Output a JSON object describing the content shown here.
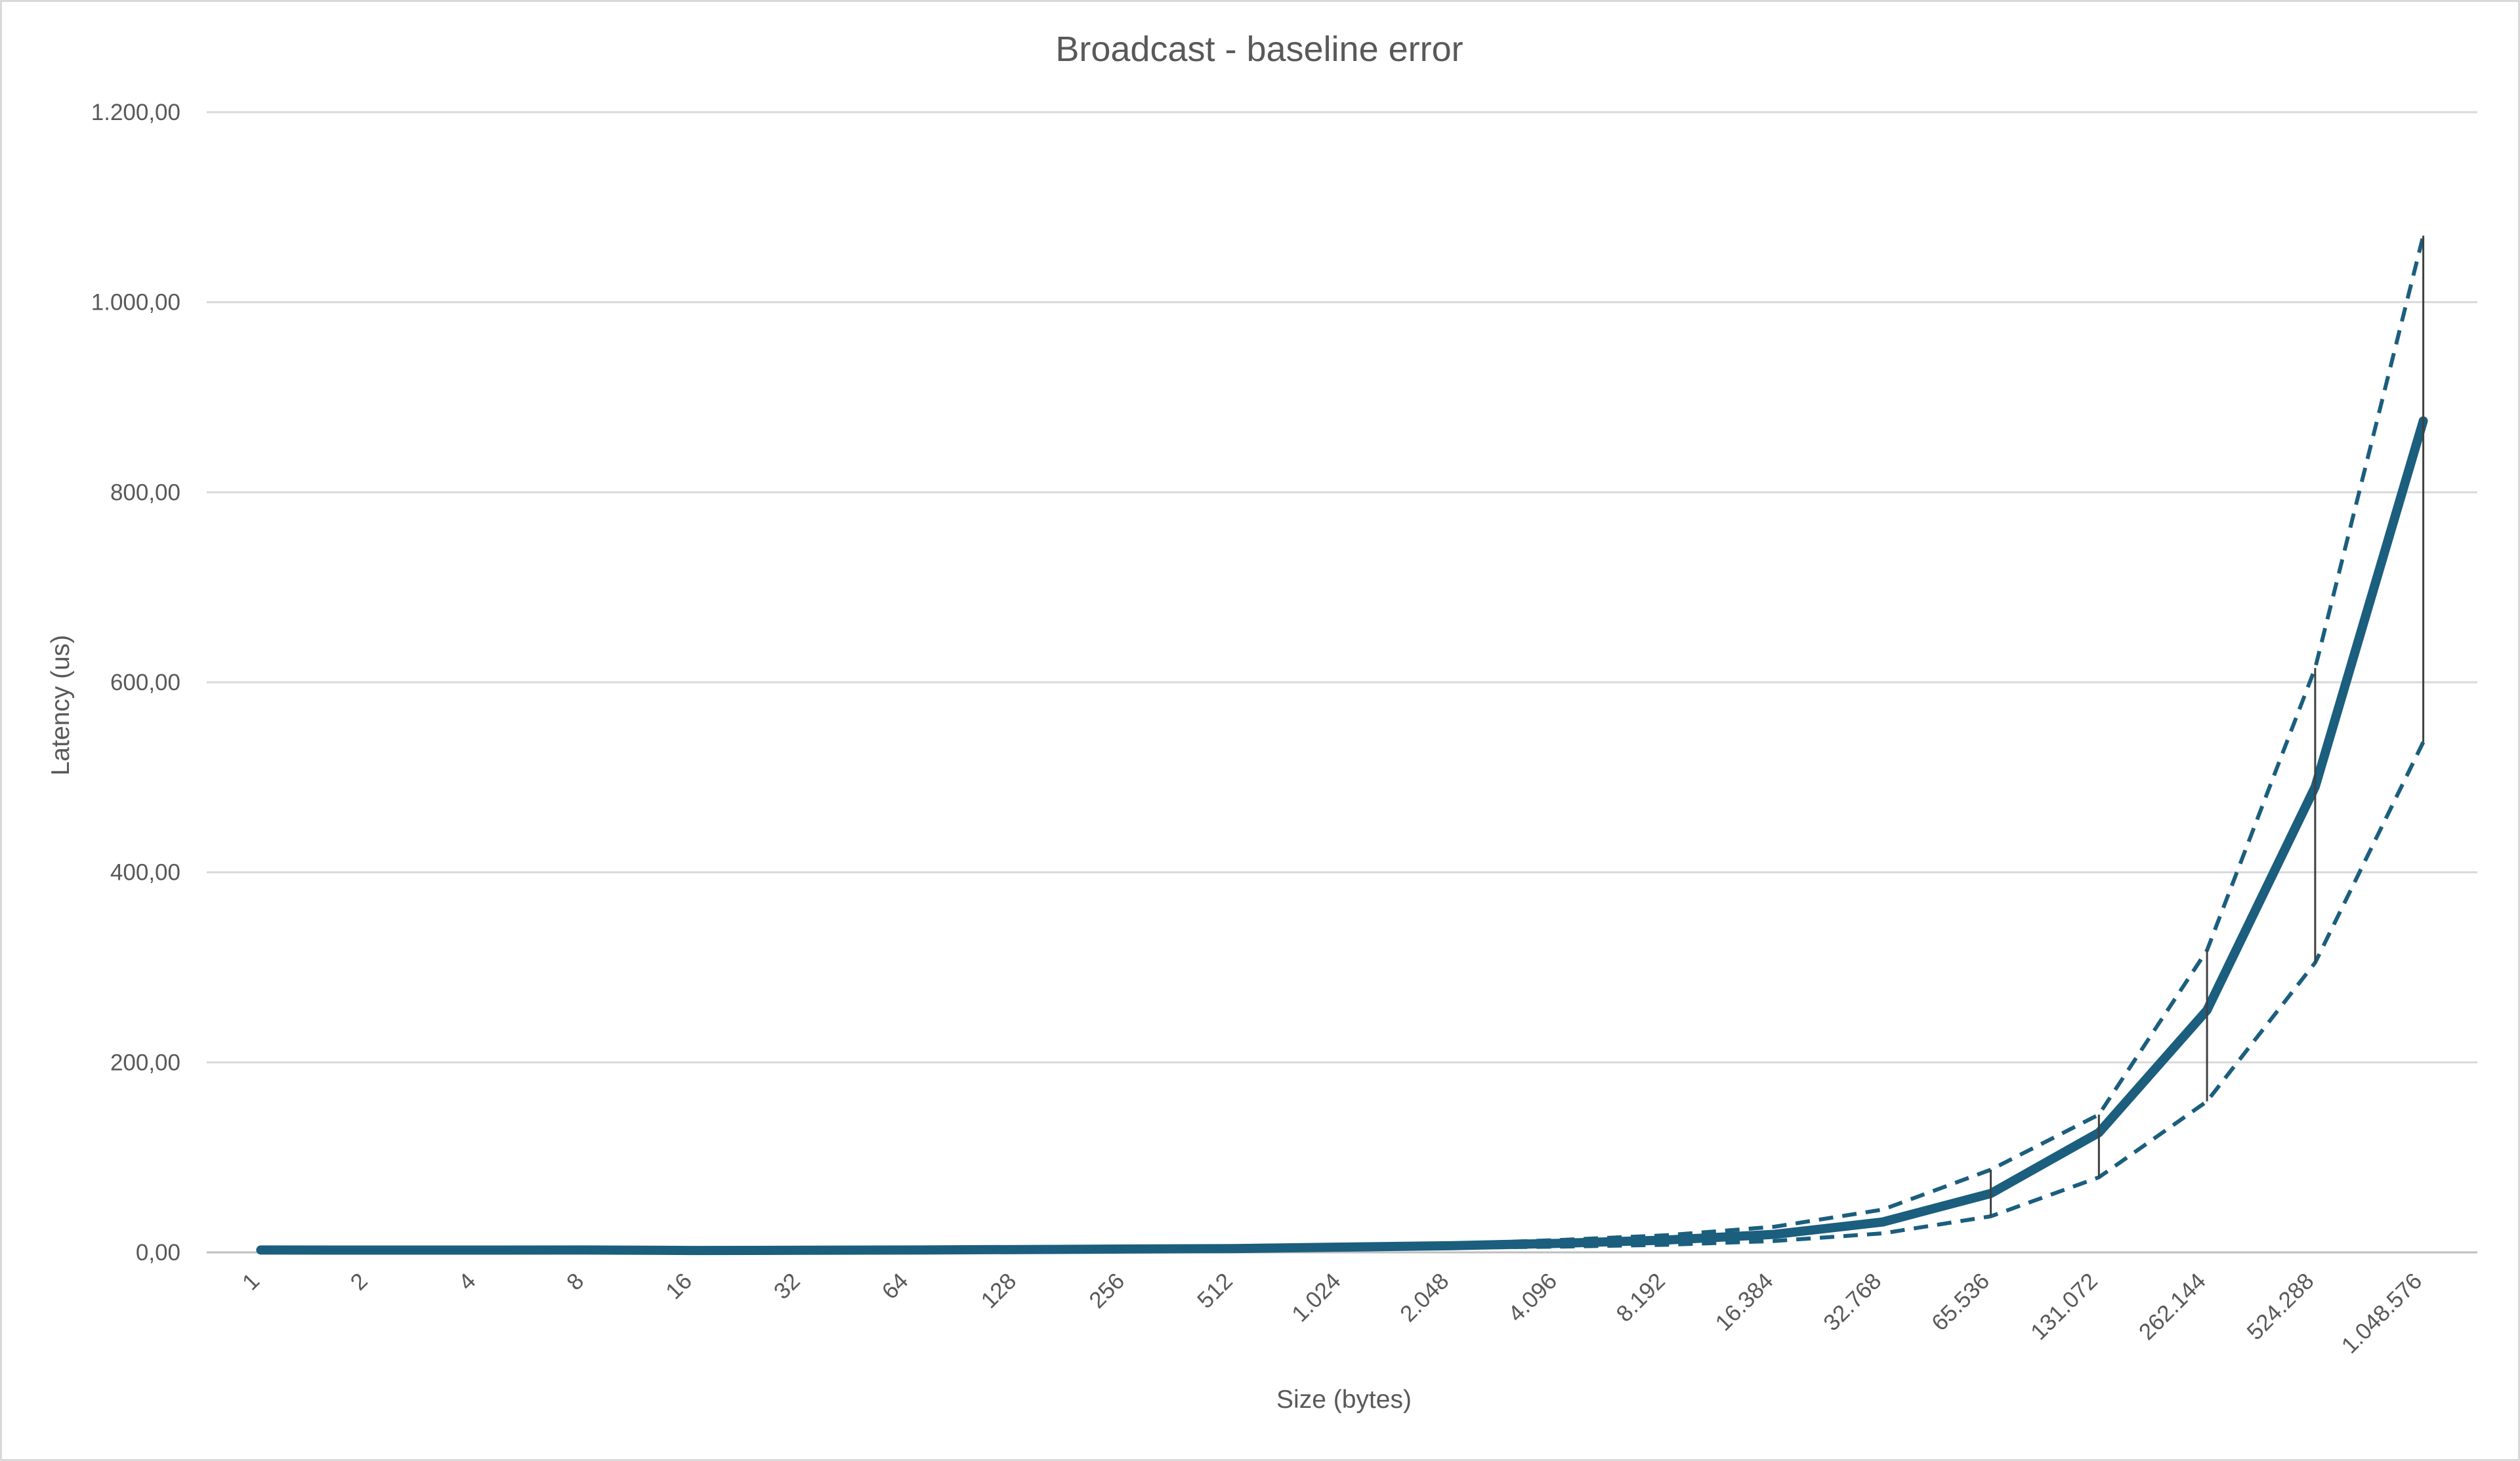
{
  "chart_data": {
    "type": "line",
    "title": "Broadcast - baseline error",
    "xlabel": "Size (bytes)",
    "ylabel": "Latency (us)",
    "ylim": [
      0,
      1200
    ],
    "y_ticks": [
      0,
      200,
      400,
      600,
      800,
      1000,
      1200
    ],
    "y_tick_labels": [
      "0,00",
      "200,00",
      "400,00",
      "600,00",
      "800,00",
      "1.000,00",
      "1.200,00"
    ],
    "grid": true,
    "legend": "none",
    "categories": [
      "1",
      "2",
      "4",
      "8",
      "16",
      "32",
      "64",
      "128",
      "256",
      "512",
      "1.024",
      "2.048",
      "4.096",
      "8.192",
      "16.384",
      "32.768",
      "65.536",
      "131.072",
      "262.144",
      "524.288",
      "1.048.576"
    ],
    "series": [
      {
        "role": "mean",
        "style": "solid",
        "color": "#1b5e7e",
        "values": [
          2.5,
          2.4,
          2.4,
          2.5,
          2.0,
          2.2,
          2.5,
          3.0,
          3.5,
          4.0,
          5.5,
          7.0,
          9.5,
          13.0,
          19.0,
          32.0,
          62.0,
          126.0,
          255.0,
          490.0,
          875.0
        ]
      },
      {
        "role": "upper",
        "style": "dashed",
        "color": "#1b5e7e",
        "values": [
          2.7,
          2.6,
          2.6,
          2.7,
          2.3,
          2.5,
          2.8,
          3.4,
          4.0,
          4.6,
          6.5,
          9.0,
          13.0,
          18.0,
          27.0,
          45.0,
          87.0,
          145.0,
          318.0,
          615.0,
          1070.0
        ]
      },
      {
        "role": "lower",
        "style": "dashed",
        "color": "#1b5e7e",
        "values": [
          2.3,
          2.2,
          2.2,
          2.3,
          1.8,
          1.9,
          2.2,
          2.6,
          3.0,
          3.4,
          4.5,
          5.0,
          6.0,
          8.0,
          12.0,
          20.0,
          38.0,
          79.0,
          159.0,
          305.0,
          537.0
        ]
      }
    ],
    "error_bars": {
      "color": "#404040",
      "from_index": 16,
      "low": [
        38.0,
        79.0,
        159.0,
        305.0,
        537.0
      ],
      "high": [
        87.0,
        145.0,
        318.0,
        615.0,
        1070.0
      ]
    }
  }
}
